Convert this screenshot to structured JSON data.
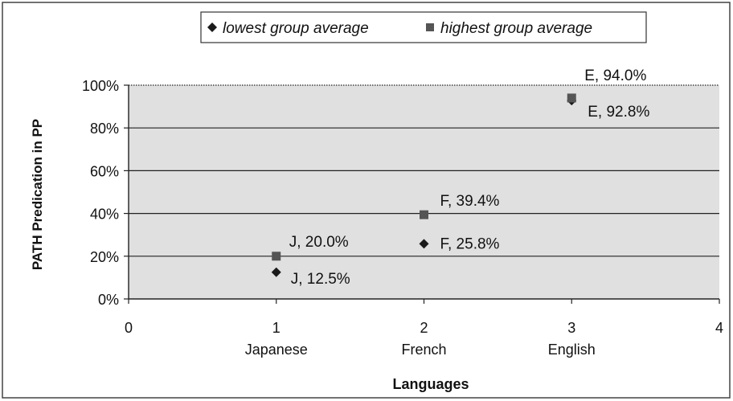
{
  "chart_data": {
    "type": "scatter",
    "title": "",
    "xlabel": "Languages",
    "ylabel": "PATH Predication in PP",
    "xlim": [
      0,
      4
    ],
    "ylim": [
      0,
      100
    ],
    "x_ticks": [
      "0",
      "1",
      "2",
      "3",
      "4"
    ],
    "y_ticks": [
      "0%",
      "20%",
      "40%",
      "60%",
      "80%",
      "100%"
    ],
    "category_labels": [
      {
        "x": 1,
        "label": "Japanese"
      },
      {
        "x": 2,
        "label": "French"
      },
      {
        "x": 3,
        "label": "English"
      }
    ],
    "grid": true,
    "legend_position": "top-center",
    "series": [
      {
        "name": "lowest group average",
        "marker": "diamond",
        "color": "#1a1a1a",
        "points": [
          {
            "x": 1,
            "y": 12.5,
            "label": "J, 12.5%"
          },
          {
            "x": 2,
            "y": 25.8,
            "label": "F, 25.8%"
          },
          {
            "x": 3,
            "y": 92.8,
            "label": "E, 92.8%"
          }
        ]
      },
      {
        "name": "highest group average",
        "marker": "square",
        "color": "#555555",
        "points": [
          {
            "x": 1,
            "y": 20.0,
            "label": "J, 20.0%"
          },
          {
            "x": 2,
            "y": 39.4,
            "label": "F, 39.4%"
          },
          {
            "x": 3,
            "y": 94.0,
            "label": "E, 94.0%"
          }
        ]
      }
    ]
  }
}
